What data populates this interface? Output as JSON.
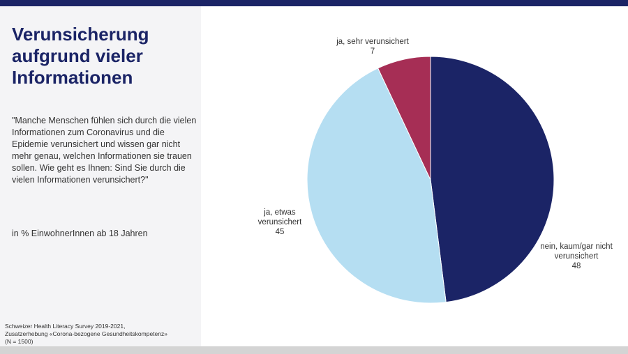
{
  "title": "Verunsicherung aufgrund vieler Informationen",
  "question": "\"Manche Menschen fühlen sich durch die vielen Informationen zum Coronavirus und die Epidemie verunsichert und wissen gar nicht mehr genau, welchen Informationen sie trauen sollen. Wie geht es Ihnen: Sind Sie durch die vielen Informationen verunsichert?\"",
  "population": "in % EinwohnerInnen ab 18 Jahren",
  "source": {
    "line1": "Schweizer Health Literacy Survey 2019-2021,",
    "line2": "Zusatzerhebung «Corona-bezogene Gesundheitskompetenz»",
    "line3": "(N = 1500)"
  },
  "colors": {
    "header_bar": "#1b2466",
    "title": "#1b2466",
    "panel": "#f4f4f6"
  },
  "chart_data": {
    "type": "pie",
    "title": "",
    "slices": [
      {
        "label_lines": [
          "nein, kaum/gar nicht",
          "verunsichert"
        ],
        "value": 48,
        "color": "#1b2466"
      },
      {
        "label_lines": [
          "ja, etwas",
          "verunsichert"
        ],
        "value": 45,
        "color": "#b5def2"
      },
      {
        "label_lines": [
          "ja, sehr verunsichert"
        ],
        "value": 7,
        "color": "#a62e55"
      }
    ]
  }
}
